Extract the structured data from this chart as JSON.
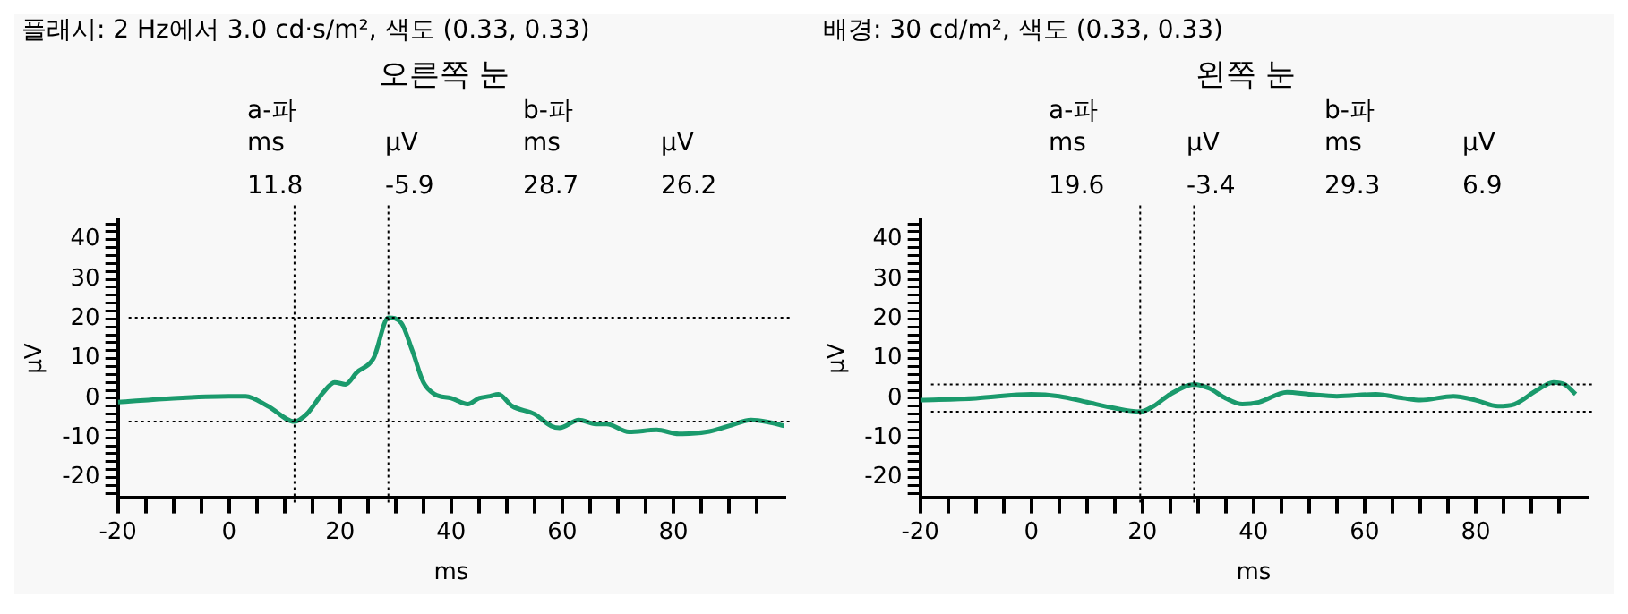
{
  "chart_data": [
    {
      "type": "line",
      "subtitle": "플래시: 2 Hz에서 3.0 cd·s/m², 색도 (0.33, 0.33)",
      "title": "오른쪽 눈",
      "xlabel": "ms",
      "ylabel": "μV",
      "annotations": [
        "a-파",
        "ms",
        "μV",
        "b-파",
        "ms",
        "μV",
        "11.8",
        "-5.9",
        "28.7",
        "26.2"
      ],
      "x": [
        -20,
        -10,
        0,
        3,
        7,
        11.8,
        14,
        17,
        19,
        21,
        23,
        26,
        28.7,
        31,
        33,
        35,
        37,
        40,
        43,
        45,
        47,
        48.5,
        51,
        55,
        58,
        59.5,
        63,
        66,
        68,
        72,
        77,
        81,
        86,
        90,
        94,
        97,
        100
      ],
      "series": [
        {
          "color": "#1a9a6c",
          "values": [
            -1,
            0,
            0.5,
            0.5,
            -2,
            -5.9,
            -4,
            1.5,
            4,
            3.5,
            6.5,
            10,
            20.3,
            19,
            12,
            4,
            1,
            0,
            -1.5,
            0,
            0.5,
            1,
            -2,
            -4,
            -7,
            -7.5,
            -5.5,
            -6.5,
            -6.5,
            -8.5,
            -8,
            -9,
            -8.5,
            -7,
            -5.5,
            -6,
            -7
          ]
        }
      ],
      "xlim": [
        -20,
        100
      ],
      "ylim": [
        -25,
        45
      ],
      "xticks": [
        -20,
        {
          "value": -15,
          "label": null
        },
        {
          "value": -10,
          "label": null
        },
        {
          "value": -5,
          "label": null
        },
        0,
        {
          "value": 5,
          "label": null
        },
        {
          "value": 10,
          "label": null
        },
        {
          "value": 15,
          "label": null
        },
        20,
        {
          "value": 25,
          "label": null
        },
        {
          "value": 30,
          "label": null
        },
        {
          "value": 35,
          "label": null
        },
        40,
        {
          "value": 45,
          "label": null
        },
        {
          "value": 50,
          "label": null
        },
        {
          "value": 55,
          "label": null
        },
        60,
        {
          "value": 65,
          "label": null
        },
        {
          "value": 70,
          "label": null
        },
        {
          "value": 75,
          "label": null
        },
        80,
        {
          "value": 85,
          "label": null
        },
        {
          "value": 90,
          "label": null
        },
        {
          "value": 95,
          "label": null
        }
      ],
      "yticks": [
        {
          "value": -24,
          "label": null
        },
        {
          "value": -22,
          "label": null
        },
        -20,
        {
          "value": -18,
          "label": null
        },
        {
          "value": -16,
          "label": null
        },
        {
          "value": -14,
          "label": null
        },
        {
          "value": -12,
          "label": null
        },
        -10,
        {
          "value": -8,
          "label": null
        },
        {
          "value": -6,
          "label": null
        },
        {
          "value": -4,
          "label": null
        },
        {
          "value": -2,
          "label": null
        },
        0,
        {
          "value": 2,
          "label": null
        },
        {
          "value": 4,
          "label": null
        },
        {
          "value": 6,
          "label": null
        },
        {
          "value": 8,
          "label": null
        },
        10,
        {
          "value": 12,
          "label": null
        },
        {
          "value": 14,
          "label": null
        },
        {
          "value": 16,
          "label": null
        },
        {
          "value": 18,
          "label": null
        },
        20,
        {
          "value": 22,
          "label": null
        },
        {
          "value": 24,
          "label": null
        },
        {
          "value": 26,
          "label": null
        },
        {
          "value": 28,
          "label": null
        },
        30,
        {
          "value": 32,
          "label": null
        },
        {
          "value": 34,
          "label": null
        },
        {
          "value": 36,
          "label": null
        },
        {
          "value": 38,
          "label": null
        },
        40,
        {
          "value": 42,
          "label": null
        },
        {
          "value": 44,
          "label": null
        }
      ],
      "ref_lines": [
        {
          "axis": "x",
          "value": 11.8,
          "color": "#000000",
          "line_style": "dotted"
        },
        {
          "axis": "x",
          "value": 28.7,
          "color": "#000000",
          "line_style": "dotted"
        },
        {
          "axis": "y",
          "value": -5.9,
          "color": "#000000",
          "line_style": "dotted"
        },
        {
          "axis": "y",
          "value": 20.3,
          "color": "#000000",
          "line_style": "dotted"
        }
      ],
      "grid": false,
      "legend": false,
      "marker": "none",
      "line_style": "solid"
    },
    {
      "type": "line",
      "subtitle": "배경: 30 cd/m², 색도 (0.33, 0.33)",
      "title": "왼쪽 눈",
      "xlabel": "ms",
      "ylabel": "μV",
      "annotations": [
        "a-파",
        "ms",
        "μV",
        "b-파",
        "ms",
        "μV",
        "19.6",
        "-3.4",
        "29.3",
        "6.9"
      ],
      "x": [
        -20,
        -10,
        0,
        5,
        10,
        15,
        19.6,
        22,
        25,
        29.3,
        32,
        35,
        38,
        41,
        46,
        50,
        55,
        62,
        67,
        70,
        76,
        80,
        84,
        87,
        91,
        94,
        96,
        98
      ],
      "series": [
        {
          "color": "#1a9a6c",
          "values": [
            -0.5,
            0,
            1,
            0.5,
            -1,
            -2.5,
            -3.4,
            -2,
            1,
            3.5,
            2.5,
            0,
            -1.5,
            -1,
            1.5,
            1,
            0.5,
            1,
            0,
            -0.5,
            0.5,
            -0.5,
            -2,
            -1.5,
            2,
            4,
            3.5,
            1
          ]
        }
      ],
      "xlim": [
        -20,
        100
      ],
      "ylim": [
        -25,
        45
      ],
      "xticks": [
        -20,
        {
          "value": -15,
          "label": null
        },
        {
          "value": -10,
          "label": null
        },
        {
          "value": -5,
          "label": null
        },
        0,
        {
          "value": 5,
          "label": null
        },
        {
          "value": 10,
          "label": null
        },
        {
          "value": 15,
          "label": null
        },
        20,
        {
          "value": 25,
          "label": null
        },
        {
          "value": 30,
          "label": null
        },
        {
          "value": 35,
          "label": null
        },
        40,
        {
          "value": 45,
          "label": null
        },
        {
          "value": 50,
          "label": null
        },
        {
          "value": 55,
          "label": null
        },
        60,
        {
          "value": 65,
          "label": null
        },
        {
          "value": 70,
          "label": null
        },
        {
          "value": 75,
          "label": null
        },
        80,
        {
          "value": 85,
          "label": null
        },
        {
          "value": 90,
          "label": null
        },
        {
          "value": 95,
          "label": null
        }
      ],
      "yticks": [
        {
          "value": -24,
          "label": null
        },
        {
          "value": -22,
          "label": null
        },
        -20,
        {
          "value": -18,
          "label": null
        },
        {
          "value": -16,
          "label": null
        },
        {
          "value": -14,
          "label": null
        },
        {
          "value": -12,
          "label": null
        },
        -10,
        {
          "value": -8,
          "label": null
        },
        {
          "value": -6,
          "label": null
        },
        {
          "value": -4,
          "label": null
        },
        {
          "value": -2,
          "label": null
        },
        0,
        {
          "value": 2,
          "label": null
        },
        {
          "value": 4,
          "label": null
        },
        {
          "value": 6,
          "label": null
        },
        {
          "value": 8,
          "label": null
        },
        10,
        {
          "value": 12,
          "label": null
        },
        {
          "value": 14,
          "label": null
        },
        {
          "value": 16,
          "label": null
        },
        {
          "value": 18,
          "label": null
        },
        20,
        {
          "value": 22,
          "label": null
        },
        {
          "value": 24,
          "label": null
        },
        {
          "value": 26,
          "label": null
        },
        {
          "value": 28,
          "label": null
        },
        30,
        {
          "value": 32,
          "label": null
        },
        {
          "value": 34,
          "label": null
        },
        {
          "value": 36,
          "label": null
        },
        {
          "value": 38,
          "label": null
        },
        40,
        {
          "value": 42,
          "label": null
        },
        {
          "value": 44,
          "label": null
        }
      ],
      "ref_lines": [
        {
          "axis": "x",
          "value": 19.6,
          "color": "#000000",
          "line_style": "dotted"
        },
        {
          "axis": "x",
          "value": 29.3,
          "color": "#000000",
          "line_style": "dotted"
        },
        {
          "axis": "y",
          "value": -3.4,
          "color": "#000000",
          "line_style": "dotted"
        },
        {
          "axis": "y",
          "value": 3.5,
          "color": "#000000",
          "line_style": "dotted"
        }
      ],
      "grid": false,
      "legend": false,
      "marker": "none",
      "line_style": "solid"
    }
  ]
}
